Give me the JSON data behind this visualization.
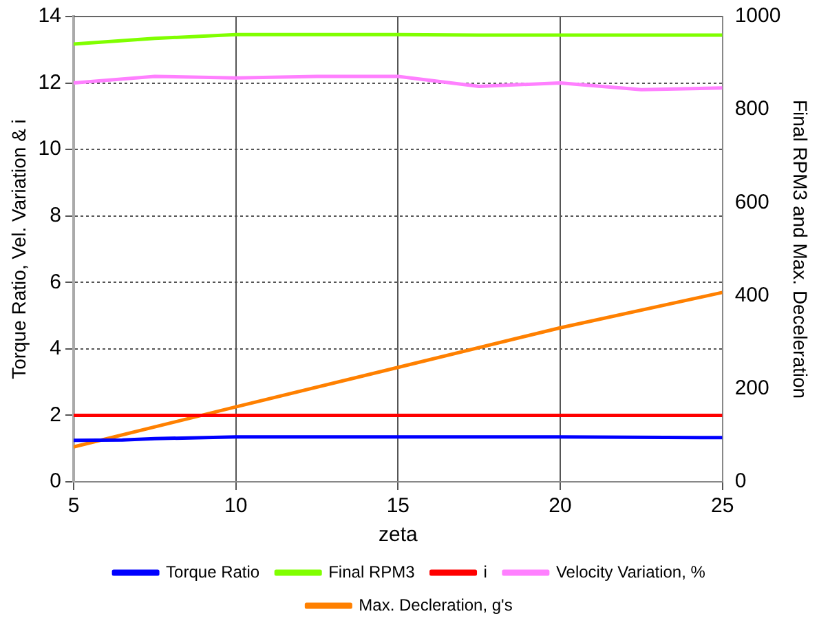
{
  "chart_data": {
    "type": "line",
    "xlabel": "zeta",
    "ylabel": "Torque Ratio, Vel. Variation & i",
    "y2label": "Final RPM3 and Max. Deceleration",
    "xlim": [
      5,
      25
    ],
    "xticks": [
      5,
      10,
      15,
      20,
      25
    ],
    "ylim": [
      0,
      14
    ],
    "yticks": [
      0,
      2,
      4,
      6,
      8,
      10,
      12,
      14
    ],
    "y2lim": [
      0,
      1000
    ],
    "y2ticks": [
      0,
      200,
      400,
      600,
      800,
      1000
    ],
    "grid": true,
    "legend": "bottom",
    "marker": "none",
    "line_style": "solid",
    "series": [
      {
        "name": "Torque Ratio",
        "color": "#0000ff",
        "x": [
          5,
          6.5,
          7.5,
          10,
          15,
          20,
          25
        ],
        "values": [
          1.25,
          1.26,
          1.3,
          1.35,
          1.35,
          1.35,
          1.33
        ]
      },
      {
        "name": "Final RPM3",
        "color": "#80ff00",
        "axis": "y2",
        "x": [
          5,
          7.5,
          10,
          12.5,
          15,
          17.5,
          20,
          25
        ],
        "values": [
          941,
          953,
          961,
          961,
          961,
          960,
          960,
          960
        ]
      },
      {
        "name": "i",
        "color": "#ff0000",
        "x": [
          5,
          25
        ],
        "values": [
          2,
          2
        ]
      },
      {
        "name": "Velocity Variation, %",
        "color": "#ff80ff",
        "x": [
          5,
          7.5,
          10,
          12.5,
          15,
          17.5,
          20,
          22.5,
          25
        ],
        "values": [
          12,
          12.2,
          12.15,
          12.2,
          12.2,
          11.9,
          12.0,
          11.8,
          11.85
        ]
      },
      {
        "name": "Max. Decleration, g's",
        "color": "#ff8000",
        "axis": "y2",
        "x": [
          5,
          10,
          15,
          20,
          25
        ],
        "values": [
          75,
          161,
          246,
          331,
          407
        ]
      }
    ]
  }
}
